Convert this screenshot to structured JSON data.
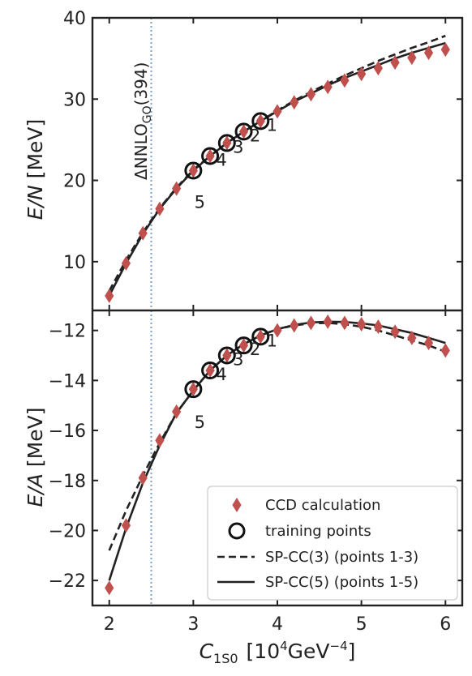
{
  "chart_data": {
    "x_label_main": "C",
    "x_label_sub": "1S0",
    "x_label_unit_pre": "[10",
    "x_label_unit_sup1": "4",
    "x_label_unit_mid": "GeV",
    "x_label_unit_sup2": "−4",
    "x_label_unit_post": "]",
    "x_ticks": [
      "2",
      "3",
      "4",
      "5",
      "6"
    ],
    "xlim": [
      1.8,
      6.2
    ],
    "vline": {
      "x": 2.5,
      "label_main": "ΔNNLO",
      "label_sub": "GO",
      "label_post": "(394)",
      "color": "#7f9fd0"
    },
    "colors": {
      "ccd": "#c0504d",
      "curve": "#222222",
      "training": "#111111"
    },
    "legend": {
      "placement": "lower-right",
      "entries": [
        "CCD calculation",
        "training points",
        "SP-CC(3) (points 1-3)",
        "SP-CC(5) (points 1-5)"
      ]
    },
    "panels": [
      {
        "id": "top",
        "ylabel_italic": "E/N",
        "ylabel_unit": "[MeV]",
        "ylim": [
          4,
          40
        ],
        "y_ticks": [
          10,
          20,
          30,
          40
        ],
        "ccd": {
          "x": [
            2.0,
            2.2,
            2.4,
            2.6,
            2.8,
            3.0,
            3.2,
            3.4,
            3.6,
            3.8,
            4.0,
            4.2,
            4.4,
            4.6,
            4.8,
            5.0,
            5.2,
            5.4,
            5.6,
            5.8,
            6.0
          ],
          "y": [
            5.8,
            9.8,
            13.5,
            16.5,
            19.0,
            21.2,
            23.0,
            24.6,
            26.0,
            27.3,
            28.5,
            29.6,
            30.6,
            31.5,
            32.3,
            33.1,
            33.8,
            34.5,
            35.1,
            35.7,
            36.1
          ]
        },
        "training": {
          "x": [
            3.8,
            3.6,
            3.4,
            3.2,
            3.0
          ],
          "y": [
            27.3,
            26.0,
            24.6,
            23.0,
            21.2
          ],
          "labels": [
            "1",
            "2",
            "3",
            "4",
            "5"
          ]
        },
        "sp3": {
          "x": [
            2.0,
            2.2,
            2.4,
            2.6,
            2.8,
            3.0,
            3.2,
            3.4,
            3.6,
            3.8,
            4.0,
            4.2,
            4.4,
            4.6,
            4.8,
            5.0,
            5.2,
            5.4,
            5.6,
            5.8,
            6.0
          ],
          "y": [
            6.4,
            10.2,
            13.6,
            16.6,
            19.1,
            21.3,
            23.0,
            24.6,
            26.0,
            27.3,
            28.6,
            29.8,
            30.9,
            31.9,
            32.9,
            33.8,
            34.7,
            35.5,
            36.3,
            37.0,
            37.8
          ]
        },
        "sp5": {
          "x": [
            2.0,
            2.2,
            2.4,
            2.6,
            2.8,
            3.0,
            3.2,
            3.4,
            3.6,
            3.8,
            4.0,
            4.2,
            4.4,
            4.6,
            4.8,
            5.0,
            5.2,
            5.4,
            5.6,
            5.8,
            6.0
          ],
          "y": [
            5.8,
            9.8,
            13.4,
            16.5,
            19.0,
            21.2,
            23.0,
            24.6,
            26.0,
            27.3,
            28.5,
            29.7,
            30.7,
            31.7,
            32.6,
            33.4,
            34.2,
            35.0,
            35.7,
            36.3,
            36.9
          ]
        }
      },
      {
        "id": "bottom",
        "ylabel_italic": "E/A",
        "ylabel_unit": "[MeV]",
        "ylim": [
          -23.0,
          -11.2
        ],
        "y_ticks": [
          -22,
          -20,
          -18,
          -16,
          -14,
          -12
        ],
        "y_tick_labels": [
          "−22",
          "−20",
          "−18",
          "−16",
          "−14",
          "−12"
        ],
        "ccd": {
          "x": [
            2.0,
            2.2,
            2.4,
            2.6,
            2.8,
            3.0,
            3.2,
            3.4,
            3.6,
            3.8,
            4.0,
            4.2,
            4.4,
            4.6,
            4.8,
            5.0,
            5.2,
            5.4,
            5.6,
            5.8,
            6.0
          ],
          "y": [
            -22.3,
            -19.8,
            -17.9,
            -16.4,
            -15.25,
            -14.35,
            -13.6,
            -13.0,
            -12.6,
            -12.25,
            -12.0,
            -11.8,
            -11.7,
            -11.65,
            -11.7,
            -11.75,
            -11.85,
            -12.05,
            -12.3,
            -12.5,
            -12.8
          ]
        },
        "training": {
          "x": [
            3.8,
            3.6,
            3.4,
            3.2,
            3.0
          ],
          "y": [
            -12.25,
            -12.6,
            -13.0,
            -13.6,
            -14.35
          ],
          "labels": [
            "1",
            "2",
            "3",
            "4",
            "5"
          ]
        },
        "sp3": {
          "x": [
            2.0,
            2.2,
            2.4,
            2.6,
            2.8,
            3.0,
            3.2,
            3.4,
            3.6,
            3.8,
            4.0,
            4.2,
            4.4,
            4.6,
            4.8,
            5.0,
            5.2,
            5.4,
            5.6,
            5.8,
            6.0
          ],
          "y": [
            -20.8,
            -19.2,
            -17.8,
            -16.5,
            -15.3,
            -14.4,
            -13.6,
            -13.0,
            -12.55,
            -12.2,
            -11.95,
            -11.8,
            -11.72,
            -11.7,
            -11.75,
            -11.85,
            -12.0,
            -12.2,
            -12.4,
            -12.6,
            -12.85
          ]
        },
        "sp5": {
          "x": [
            2.0,
            2.2,
            2.4,
            2.6,
            2.8,
            3.0,
            3.2,
            3.4,
            3.6,
            3.8,
            4.0,
            4.2,
            4.4,
            4.6,
            4.8,
            5.0,
            5.2,
            5.4,
            5.6,
            5.8,
            6.0
          ],
          "y": [
            -22.0,
            -19.9,
            -18.1,
            -16.6,
            -15.3,
            -14.4,
            -13.6,
            -13.0,
            -12.55,
            -12.2,
            -11.95,
            -11.78,
            -11.68,
            -11.65,
            -11.66,
            -11.72,
            -11.8,
            -11.95,
            -12.1,
            -12.3,
            -12.5
          ]
        }
      }
    ]
  }
}
